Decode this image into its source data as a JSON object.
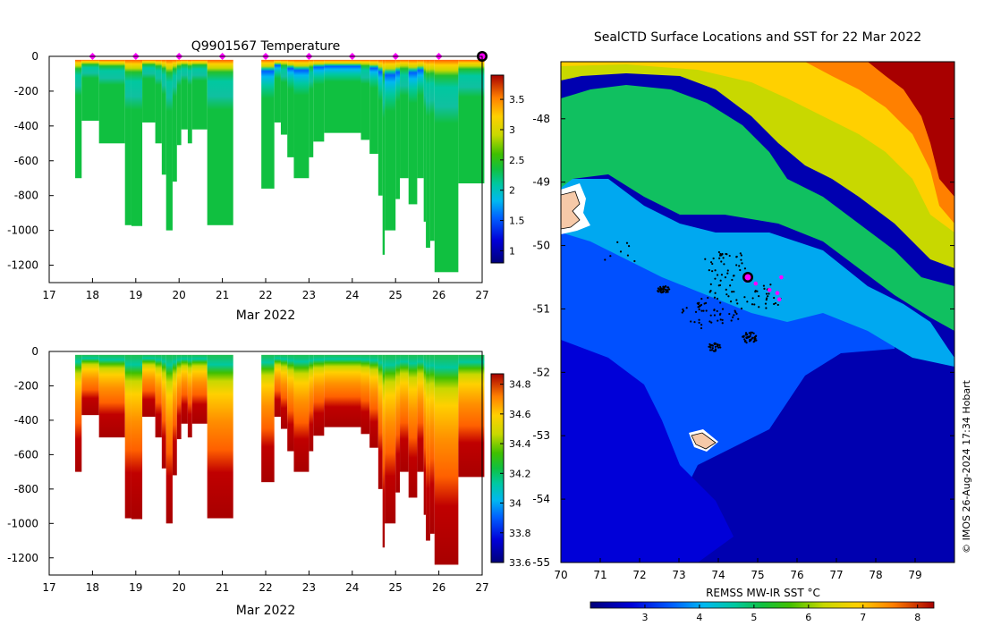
{
  "temperature_title": "Q9901567  Temperature",
  "map_title": "SealCTD Surface Locations and SST for 22 Mar 2022",
  "xaxis_label": "Mar 2022",
  "sst_label": "REMSS MW-IR SST °C",
  "credit": "©  IMOS 26-Aug-2024 17:34 Hobart",
  "colors": {
    "marker": "#ff00ff",
    "land": "#f6c9a8",
    "track": "#000000"
  },
  "chart_data": [
    {
      "type": "heatmap",
      "name": "temperature-section",
      "title": "Q9901567  Temperature",
      "xlabel": "Mar 2022",
      "x_ticks": [
        "17",
        "18",
        "19",
        "20",
        "21",
        "22",
        "23",
        "24",
        "25",
        "26",
        "27"
      ],
      "y_ticks": [
        "0",
        "-200",
        "-400",
        "-600",
        "-800",
        "-1000",
        "-1200"
      ],
      "xlim": [
        17,
        27
      ],
      "ylim": [
        -1300,
        0
      ],
      "colorbar": {
        "ticks": [
          "1",
          "1.5",
          "2",
          "2.5",
          "3",
          "3.5"
        ],
        "range": [
          0.8,
          3.9
        ]
      },
      "profile_markers_day": [
        18,
        19,
        20,
        21,
        22,
        23,
        24,
        25,
        26,
        27
      ],
      "profiles": [
        {
          "x0": 17.6,
          "x1": 17.75,
          "depth": 700
        },
        {
          "x0": 17.75,
          "x1": 18.15,
          "depth": 370
        },
        {
          "x0": 18.15,
          "x1": 18.75,
          "depth": 500
        },
        {
          "x0": 18.75,
          "x1": 18.9,
          "depth": 970
        },
        {
          "x0": 18.9,
          "x1": 19.15,
          "depth": 975
        },
        {
          "x0": 19.15,
          "x1": 19.45,
          "depth": 380
        },
        {
          "x0": 19.45,
          "x1": 19.6,
          "depth": 500
        },
        {
          "x0": 19.6,
          "x1": 19.7,
          "depth": 680
        },
        {
          "x0": 19.7,
          "x1": 19.85,
          "depth": 1000
        },
        {
          "x0": 19.85,
          "x1": 19.95,
          "depth": 720
        },
        {
          "x0": 19.95,
          "x1": 20.05,
          "depth": 510
        },
        {
          "x0": 20.05,
          "x1": 20.2,
          "depth": 420
        },
        {
          "x0": 20.2,
          "x1": 20.3,
          "depth": 500
        },
        {
          "x0": 20.3,
          "x1": 20.65,
          "depth": 420
        },
        {
          "x0": 20.65,
          "x1": 21.25,
          "depth": 970
        },
        {
          "x0": 21.9,
          "x1": 22.2,
          "depth": 760
        },
        {
          "x0": 22.2,
          "x1": 22.35,
          "depth": 380
        },
        {
          "x0": 22.35,
          "x1": 22.5,
          "depth": 450
        },
        {
          "x0": 22.5,
          "x1": 22.65,
          "depth": 580
        },
        {
          "x0": 22.65,
          "x1": 23.0,
          "depth": 700
        },
        {
          "x0": 23.0,
          "x1": 23.1,
          "depth": 580
        },
        {
          "x0": 23.1,
          "x1": 23.35,
          "depth": 490
        },
        {
          "x0": 23.35,
          "x1": 24.2,
          "depth": 440
        },
        {
          "x0": 24.2,
          "x1": 24.4,
          "depth": 480
        },
        {
          "x0": 24.4,
          "x1": 24.6,
          "depth": 560
        },
        {
          "x0": 24.6,
          "x1": 24.7,
          "depth": 800
        },
        {
          "x0": 24.7,
          "x1": 24.75,
          "depth": 1140
        },
        {
          "x0": 24.75,
          "x1": 25.0,
          "depth": 1000
        },
        {
          "x0": 25.0,
          "x1": 25.1,
          "depth": 820
        },
        {
          "x0": 25.1,
          "x1": 25.3,
          "depth": 700
        },
        {
          "x0": 25.3,
          "x1": 25.5,
          "depth": 850
        },
        {
          "x0": 25.5,
          "x1": 25.65,
          "depth": 700
        },
        {
          "x0": 25.65,
          "x1": 25.7,
          "depth": 950
        },
        {
          "x0": 25.7,
          "x1": 25.8,
          "depth": 1100
        },
        {
          "x0": 25.8,
          "x1": 25.9,
          "depth": 1060
        },
        {
          "x0": 25.9,
          "x1": 26.45,
          "depth": 1240
        },
        {
          "x0": 26.45,
          "x1": 27.05,
          "depth": 730
        }
      ]
    },
    {
      "type": "heatmap",
      "name": "salinity-section",
      "title": "",
      "xlabel": "Mar 2022",
      "x_ticks": [
        "17",
        "18",
        "19",
        "20",
        "21",
        "22",
        "23",
        "24",
        "25",
        "26",
        "27"
      ],
      "y_ticks": [
        "0",
        "-200",
        "-400",
        "-600",
        "-800",
        "-1000",
        "-1200"
      ],
      "xlim": [
        17,
        27
      ],
      "ylim": [
        -1300,
        0
      ],
      "colorbar": {
        "ticks": [
          "33.6",
          "33.8",
          "34",
          "34.2",
          "34.4",
          "34.6",
          "34.8"
        ],
        "range": [
          33.6,
          34.87
        ]
      }
    },
    {
      "type": "heatmap",
      "name": "sst-map",
      "title": "SealCTD Surface Locations and SST for 22 Mar 2022",
      "x_ticks": [
        "70",
        "71",
        "72",
        "73",
        "74",
        "75",
        "76",
        "77",
        "78",
        "79"
      ],
      "y_ticks": [
        "-48",
        "-49",
        "-50",
        "-51",
        "-52",
        "-53",
        "-54",
        "-55"
      ],
      "xlim": [
        70,
        80
      ],
      "ylim": [
        -55,
        -47.1
      ],
      "colorbar": {
        "label": "REMSS MW-IR SST °C",
        "ticks": [
          "3",
          "4",
          "5",
          "6",
          "7",
          "8"
        ],
        "range": [
          2.0,
          8.3
        ]
      },
      "current_position": {
        "lon": 74.75,
        "lat": -50.5
      },
      "magenta_positions": [
        {
          "lon": 74.7,
          "lat": -50.55
        },
        {
          "lon": 75.3,
          "lat": -50.7
        },
        {
          "lon": 75.5,
          "lat": -50.75
        },
        {
          "lon": 75.55,
          "lat": -50.85
        },
        {
          "lon": 75.6,
          "lat": -50.5
        },
        {
          "lon": 74.95,
          "lat": -50.6
        }
      ],
      "track_clusters": [
        {
          "lon": 72.6,
          "lat": -50.7,
          "n": 40,
          "spread": 0.12
        },
        {
          "lon": 74.2,
          "lat": -50.3,
          "n": 40,
          "spread": 0.45
        },
        {
          "lon": 74.8,
          "lat": -51.45,
          "n": 45,
          "spread": 0.15
        },
        {
          "lon": 73.9,
          "lat": -51.6,
          "n": 30,
          "spread": 0.12
        },
        {
          "lon": 74.1,
          "lat": -50.9,
          "n": 45,
          "spread": 0.55
        },
        {
          "lon": 75.2,
          "lat": -50.8,
          "n": 25,
          "spread": 0.35
        },
        {
          "lon": 71.5,
          "lat": -50.15,
          "n": 8,
          "spread": 0.35
        },
        {
          "lon": 73.5,
          "lat": -51.1,
          "n": 25,
          "spread": 0.35
        }
      ]
    }
  ]
}
